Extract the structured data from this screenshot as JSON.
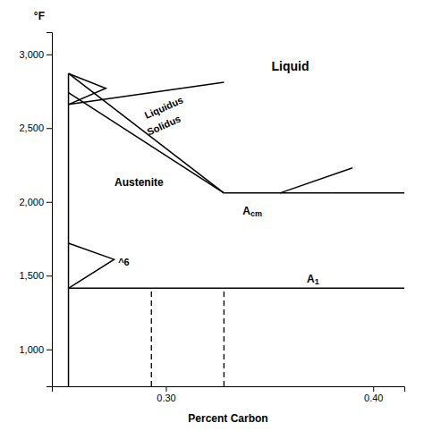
{
  "chart_data": {
    "type": "line",
    "xlabel": "Percent Carbon",
    "ylabel": "°F",
    "xlim": [
      0.245,
      0.415
    ],
    "ylim": [
      750,
      3150
    ],
    "xticks": [
      {
        "value": 0.3,
        "label": "0.30"
      },
      {
        "value": 0.4,
        "label": "0.40"
      }
    ],
    "yticks": [
      {
        "value": 1000,
        "label": "1,000"
      },
      {
        "value": 1500,
        "label": "1,500"
      },
      {
        "value": 2000,
        "label": "2,000"
      },
      {
        "value": 2500,
        "label": "2,500"
      },
      {
        "value": 3000,
        "label": "3,000"
      }
    ],
    "grid": false,
    "color": "#000000",
    "series": [
      {
        "x": [
          0.253,
          0.415
        ],
        "values": [
          1415,
          1415
        ]
      },
      {
        "x": [
          0.253,
          0.328
        ],
        "values": [
          2870,
          2060
        ]
      },
      {
        "x": [
          0.253,
          0.328
        ],
        "values": [
          2740,
          2060
        ]
      },
      {
        "x": [
          0.253,
          0.328
        ],
        "values": [
          2660,
          2810
        ]
      },
      {
        "x": [
          0.253,
          0.253
        ],
        "values": [
          1415,
          2870
        ]
      },
      {
        "x": [
          0.253,
          0.271,
          0.253
        ],
        "values": [
          2870,
          2770,
          2660
        ]
      },
      {
        "x": [
          0.328,
          0.38
        ],
        "values": [
          2060,
          2060
        ]
      },
      {
        "x": [
          0.355,
          0.39,
          0.355
        ],
        "values": [
          2060,
          2230,
          2060
        ]
      },
      {
        "x": [
          0.38,
          0.415
        ],
        "values": [
          2060,
          2060
        ]
      },
      {
        "x": [
          0.253,
          0.275,
          0.253
        ],
        "values": [
          1720,
          1610,
          1415
        ]
      },
      {
        "x": [
          0.253,
          0.253
        ],
        "values": [
          750,
          1415
        ]
      },
      {
        "x": [
          0.293,
          0.293
        ],
        "values": [
          750,
          1415
        ],
        "line_style": "dashed"
      },
      {
        "x": [
          0.328,
          0.328
        ],
        "values": [
          750,
          1415
        ],
        "line_style": "dashed"
      }
    ],
    "annotations": [
      {
        "text": "Liquid",
        "x": 0.36,
        "y": 2920
      },
      {
        "text": "Liquidus",
        "x": 0.299,
        "y": 2640
      },
      {
        "text": "Solidus",
        "x": 0.299,
        "y": 2520
      },
      {
        "text": "Austenite",
        "x": 0.287,
        "y": 2130
      },
      {
        "text": "A",
        "sub": "cm",
        "x": 0.337,
        "y": 1940
      },
      {
        "text": "A",
        "sub": "1",
        "x": 0.368,
        "y": 1480
      },
      {
        "text": "^6",
        "x": 0.277,
        "y": 1590
      }
    ]
  }
}
